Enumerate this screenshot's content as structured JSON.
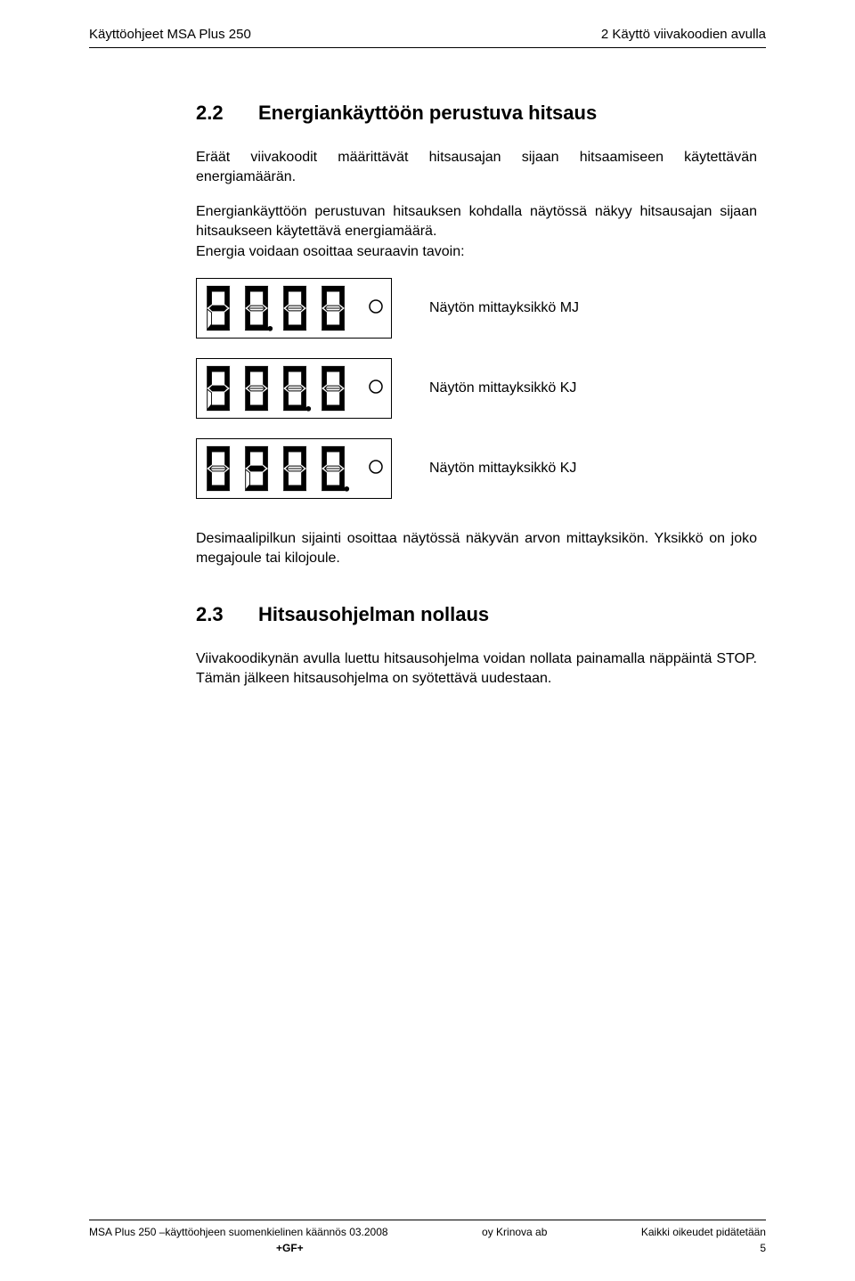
{
  "header": {
    "left": "Käyttöohjeet MSA Plus 250",
    "right": "2 Käyttö viivakoodien avulla"
  },
  "section22": {
    "num": "2.2",
    "title": "Energiankäyttöön perustuva hitsaus",
    "p1": "Eräät viivakoodit määrittävät hitsausajan sijaan hitsaamiseen käytettävän energiamäärän.",
    "p2": "Energiankäyttöön perustuvan hitsauksen kohdalla näytössä näkyy hitsausajan sijaan hitsaukseen käytettävä energiamäärä.",
    "p3": "Energia voidaan osoittaa seuraavin tavoin:"
  },
  "displays": [
    {
      "segments": [
        "9",
        "0.",
        "0",
        "0"
      ],
      "decimal_after": 1,
      "label": "Näytön mittayksikkö MJ"
    },
    {
      "segments": [
        "9",
        "0",
        "0.",
        "0"
      ],
      "decimal_after": 2,
      "label": "Näytön mittayksikkö KJ"
    },
    {
      "segments": [
        "0",
        "9",
        "0",
        "0."
      ],
      "decimal_after": 3,
      "label": "Näytön mittayksikkö KJ"
    }
  ],
  "section22b": {
    "p4": "Desimaalipilkun sijainti osoittaa näytössä näkyvän arvon mittayksikön. Yksikkö on joko megajoule tai kilojoule."
  },
  "section23": {
    "num": "2.3",
    "title": "Hitsausohjelman nollaus",
    "p1": "Viivakoodikynän avulla luettu hitsausohjelma voidan nollata painamalla näppäintä STOP. Tämän jälkeen hitsausohjelma on syötettävä uudestaan."
  },
  "footer": {
    "left": "MSA Plus 250 –käyttöohjeen suomenkielinen käännös 03.2008",
    "center": "oy Krinova ab",
    "right": "Kaikki oikeudet pidätetään",
    "brand": "+GF+",
    "page": "5"
  },
  "colors": {
    "seg_on": "#000000",
    "seg_off": "#ffffff",
    "seg_stroke": "#000000",
    "indicator_stroke": "#000000"
  }
}
